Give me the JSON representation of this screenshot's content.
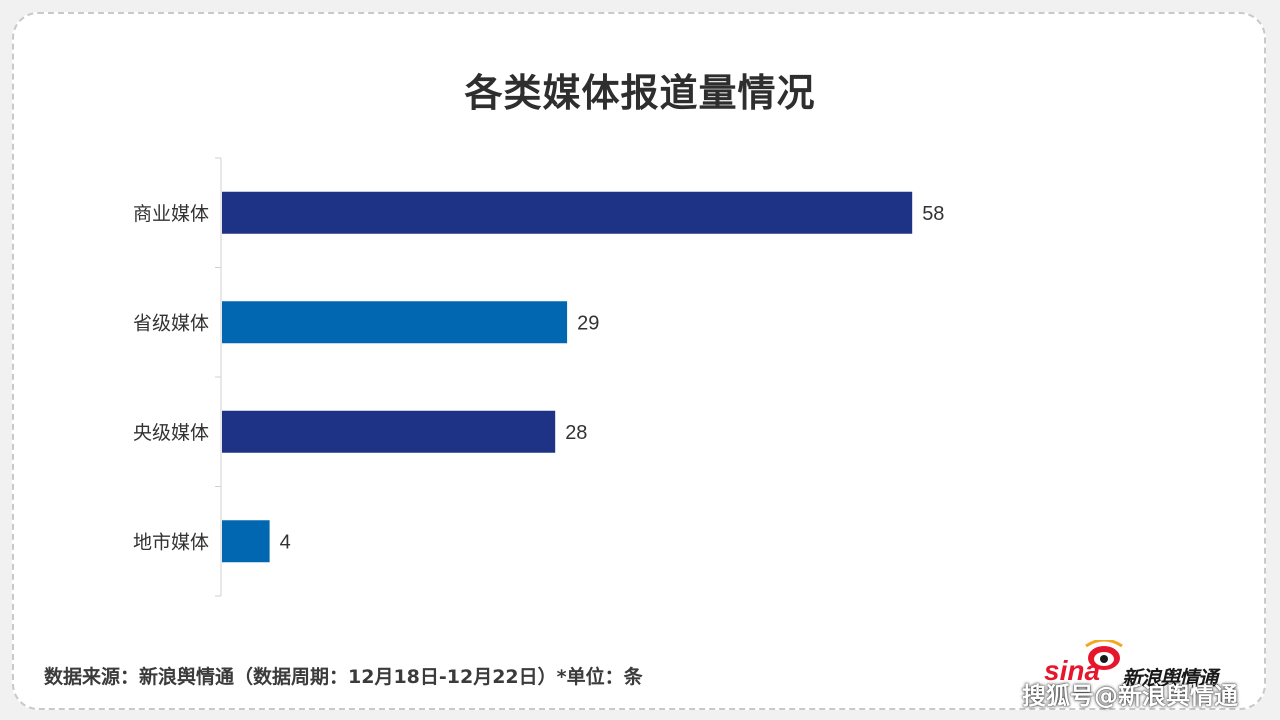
{
  "chart_data": {
    "type": "bar",
    "orientation": "horizontal",
    "title": "各类媒体报道量情况",
    "categories": [
      "商业媒体",
      "省级媒体",
      "央级媒体",
      "地市媒体"
    ],
    "values": [
      58,
      29,
      28,
      4
    ],
    "bar_colors": [
      "#1f3386",
      "#0067b0",
      "#1f3386",
      "#0067b0"
    ],
    "xlim": [
      0,
      100
    ],
    "grid": false,
    "data_labels": true
  },
  "footer": {
    "source": "数据来源：新浪舆情通（数据周期：12月18日-12月22日）*单位：条"
  },
  "logo": {
    "brand": "sina",
    "text": "新浪舆情通"
  },
  "watermark": {
    "text": "搜狐号@新浪舆情通"
  }
}
